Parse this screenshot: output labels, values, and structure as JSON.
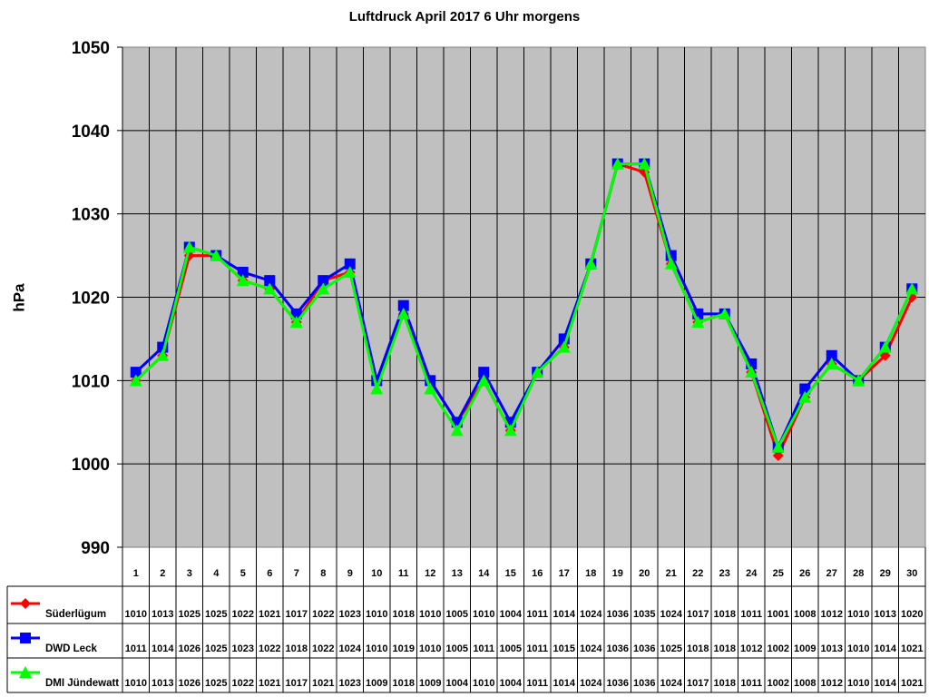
{
  "chart_data": {
    "type": "line",
    "title": "Luftdruck April 2017 6 Uhr morgens",
    "xlabel": "",
    "ylabel": "hPa",
    "ylim": [
      990,
      1050
    ],
    "yticks": [
      990,
      1000,
      1010,
      1020,
      1030,
      1040,
      1050
    ],
    "grid": true,
    "legend_position": "table-left",
    "plot_background": "#c0c0c0",
    "categories": [
      "1",
      "2",
      "3",
      "4",
      "5",
      "6",
      "7",
      "8",
      "9",
      "10",
      "11",
      "12",
      "13",
      "14",
      "15",
      "16",
      "17",
      "18",
      "19",
      "20",
      "21",
      "22",
      "23",
      "24",
      "25",
      "26",
      "27",
      "28",
      "29",
      "30"
    ],
    "series": [
      {
        "name": "Süderlügum",
        "color": "#ff0000",
        "marker": "diamond",
        "values": [
          1010,
          1013,
          1025,
          1025,
          1022,
          1021,
          1017,
          1022,
          1023,
          1010,
          1018,
          1010,
          1005,
          1010,
          1004,
          1011,
          1014,
          1024,
          1036,
          1035,
          1024,
          1017,
          1018,
          1011,
          1001,
          1008,
          1012,
          1010,
          1013,
          1020
        ]
      },
      {
        "name": "DWD Leck",
        "color": "#0000ff",
        "marker": "square",
        "values": [
          1011,
          1014,
          1026,
          1025,
          1023,
          1022,
          1018,
          1022,
          1024,
          1010,
          1019,
          1010,
          1005,
          1011,
          1005,
          1011,
          1015,
          1024,
          1036,
          1036,
          1025,
          1018,
          1018,
          1012,
          1002,
          1009,
          1013,
          1010,
          1014,
          1021
        ]
      },
      {
        "name": "DMI Jündewatt",
        "color": "#00ff00",
        "marker": "triangle",
        "values": [
          1010,
          1013,
          1026,
          1025,
          1022,
          1021,
          1017,
          1021,
          1023,
          1009,
          1018,
          1009,
          1004,
          1010,
          1004,
          1011,
          1014,
          1024,
          1036,
          1036,
          1024,
          1017,
          1018,
          1011,
          1002,
          1008,
          1012,
          1010,
          1014,
          1021
        ]
      }
    ]
  }
}
